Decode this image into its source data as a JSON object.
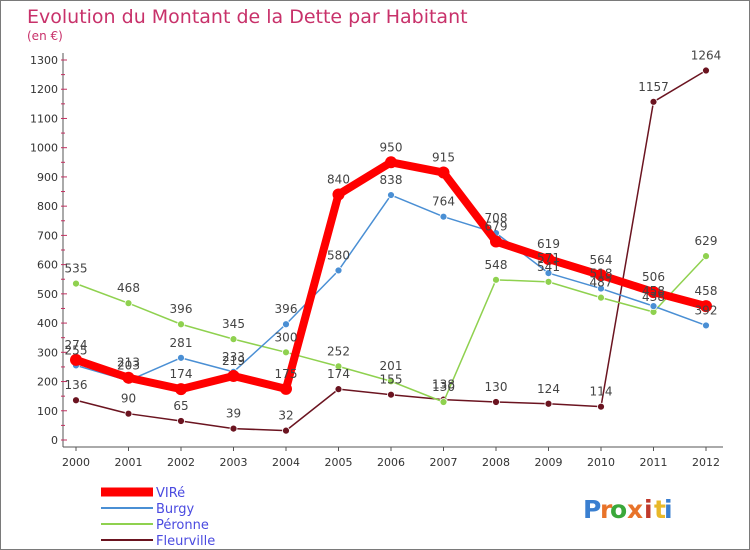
{
  "chart_data": {
    "type": "line",
    "title": "Evolution du Montant de la Dette par Habitant",
    "subtitle": "(en €)",
    "x": [
      "2000",
      "2001",
      "2002",
      "2003",
      "2004",
      "2005",
      "2006",
      "2007",
      "2008",
      "2009",
      "2010",
      "2011",
      "2012"
    ],
    "ylim": [
      0,
      1300
    ],
    "yticks": [
      0,
      100,
      200,
      300,
      400,
      500,
      600,
      700,
      800,
      900,
      1000,
      1100,
      1200,
      1300
    ],
    "grid": false,
    "legend_position": "bottom-left",
    "series": [
      {
        "name": "Fleurville",
        "color": "#6b1420",
        "values": [
          136,
          90,
          65,
          39,
          32,
          174,
          155,
          138,
          130,
          124,
          114,
          1157,
          1264
        ]
      },
      {
        "name": "Péronne",
        "color": "#8fd14f",
        "values": [
          535,
          468,
          396,
          345,
          300,
          252,
          201,
          130,
          548,
          541,
          487,
          438,
          629
        ]
      },
      {
        "name": "Burgy",
        "color": "#4a8fd4",
        "values": [
          255,
          203,
          281,
          233,
          396,
          580,
          838,
          764,
          708,
          571,
          518,
          458,
          392
        ]
      },
      {
        "name": "VIRé",
        "color": "#ff0000",
        "values": [
          274,
          213,
          174,
          219,
          175,
          840,
          950,
          915,
          679,
          619,
          564,
          506,
          458
        ]
      }
    ],
    "legend_order": [
      "VIRé",
      "Burgy",
      "Péronne",
      "Fleurville"
    ]
  },
  "brand": {
    "letters": [
      "P",
      "r",
      "o",
      "x",
      "i",
      "t",
      "i"
    ],
    "colors": [
      "#3a7fd0",
      "#e8732a",
      "#3aa83a",
      "#e8732a",
      "#c0392b",
      "#e8b82a",
      "#3a7fd0"
    ]
  }
}
